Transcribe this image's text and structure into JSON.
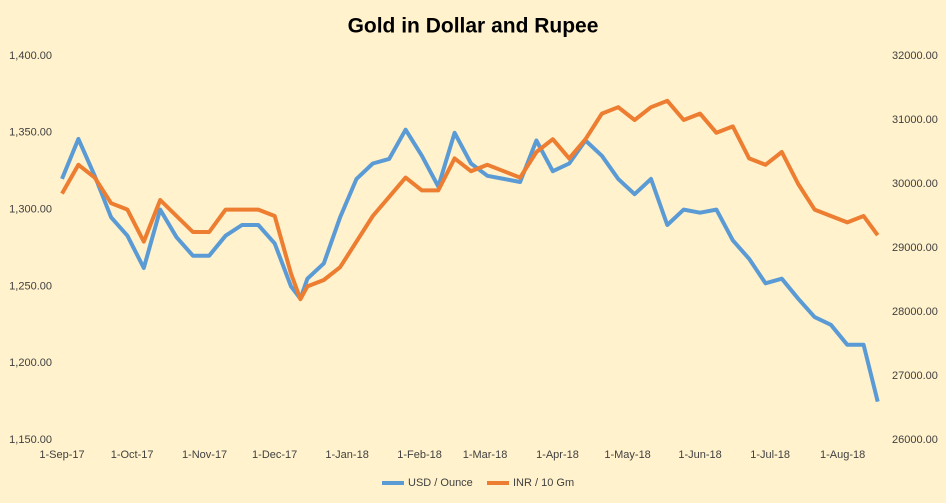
{
  "chart_data": {
    "type": "line",
    "title": "Gold in Dollar and Rupee",
    "x": [
      "2017-09-01",
      "2017-09-08",
      "2017-09-15",
      "2017-09-22",
      "2017-09-29",
      "2017-10-06",
      "2017-10-13",
      "2017-10-20",
      "2017-10-27",
      "2017-11-03",
      "2017-11-10",
      "2017-11-17",
      "2017-11-24",
      "2017-12-01",
      "2017-12-08",
      "2017-12-12",
      "2017-12-15",
      "2017-12-22",
      "2017-12-29",
      "2018-01-05",
      "2018-01-12",
      "2018-01-19",
      "2018-01-26",
      "2018-02-02",
      "2018-02-09",
      "2018-02-16",
      "2018-02-23",
      "2018-03-02",
      "2018-03-09",
      "2018-03-16",
      "2018-03-23",
      "2018-03-30",
      "2018-04-06",
      "2018-04-13",
      "2018-04-20",
      "2018-04-27",
      "2018-05-04",
      "2018-05-11",
      "2018-05-18",
      "2018-05-25",
      "2018-06-01",
      "2018-06-08",
      "2018-06-15",
      "2018-06-22",
      "2018-06-29",
      "2018-07-06",
      "2018-07-13",
      "2018-07-20",
      "2018-07-27",
      "2018-08-03",
      "2018-08-10",
      "2018-08-16"
    ],
    "series": [
      {
        "name": "USD / Ounce",
        "color": "#5b9bd5",
        "values": [
          1320,
          1346,
          1322,
          1295,
          1283,
          1262,
          1300,
          1282,
          1270,
          1270,
          1283,
          1290,
          1290,
          1278,
          1250,
          1242,
          1255,
          1265,
          1295,
          1320,
          1330,
          1333,
          1352,
          1335,
          1315,
          1350,
          1330,
          1322,
          1320,
          1318,
          1345,
          1325,
          1330,
          1345,
          1335,
          1320,
          1310,
          1320,
          1290,
          1300,
          1298,
          1300,
          1280,
          1268,
          1252,
          1255,
          1242,
          1230,
          1225,
          1212,
          1212,
          1175
        ]
      },
      {
        "name": "INR / 10 Gm",
        "color": "#ed7d31",
        "axis": "y2",
        "values": [
          29850,
          30300,
          30100,
          29700,
          29600,
          29100,
          29750,
          29500,
          29250,
          29250,
          29600,
          29600,
          29600,
          29500,
          28600,
          28200,
          28400,
          28500,
          28700,
          29100,
          29500,
          29800,
          30100,
          29900,
          29900,
          30400,
          30200,
          30300,
          30200,
          30100,
          30500,
          30700,
          30400,
          30700,
          31100,
          31200,
          31000,
          31200,
          31300,
          31000,
          31100,
          30800,
          30900,
          30400,
          30300,
          30500,
          30000,
          29600,
          29500,
          29400,
          29500,
          29200
        ]
      }
    ],
    "xlim": [
      "2017-09-01",
      "2018-08-17"
    ],
    "xticks": [
      {
        "value": "2017-09-01",
        "label": "1-Sep-17"
      },
      {
        "value": "2017-10-01",
        "label": "1-Oct-17"
      },
      {
        "value": "2017-11-01",
        "label": "1-Nov-17"
      },
      {
        "value": "2017-12-01",
        "label": "1-Dec-17"
      },
      {
        "value": "2018-01-01",
        "label": "1-Jan-18"
      },
      {
        "value": "2018-02-01",
        "label": "1-Feb-18"
      },
      {
        "value": "2018-03-01",
        "label": "1-Mar-18"
      },
      {
        "value": "2018-04-01",
        "label": "1-Apr-18"
      },
      {
        "value": "2018-05-01",
        "label": "1-May-18"
      },
      {
        "value": "2018-06-01",
        "label": "1-Jun-18"
      },
      {
        "value": "2018-07-01",
        "label": "1-Jul-18"
      },
      {
        "value": "2018-08-01",
        "label": "1-Aug-18"
      }
    ],
    "ylim": [
      1150,
      1400
    ],
    "yticks": [
      {
        "value": 1150,
        "label": "1,150.00"
      },
      {
        "value": 1200,
        "label": "1,200.00"
      },
      {
        "value": 1250,
        "label": "1,250.00"
      },
      {
        "value": 1300,
        "label": "1,300.00"
      },
      {
        "value": 1350,
        "label": "1,350.00"
      },
      {
        "value": 1400,
        "label": "1,400.00"
      }
    ],
    "y2lim": [
      26000,
      32000
    ],
    "y2ticks": [
      {
        "value": 26000,
        "label": "26000.00"
      },
      {
        "value": 27000,
        "label": "27000.00"
      },
      {
        "value": 28000,
        "label": "28000.00"
      },
      {
        "value": 29000,
        "label": "29000.00"
      },
      {
        "value": 30000,
        "label": "30000.00"
      },
      {
        "value": 31000,
        "label": "31000.00"
      },
      {
        "value": 32000,
        "label": "32000.00"
      }
    ],
    "legend": "bottom"
  }
}
